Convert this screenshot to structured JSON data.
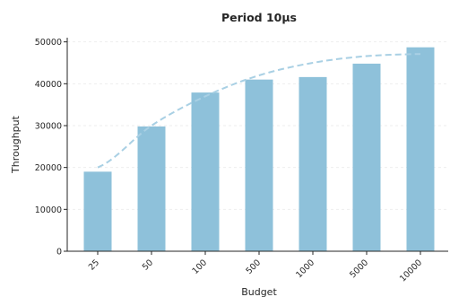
{
  "chart_data": {
    "type": "bar",
    "title": "Period 10µs",
    "xlabel": "Budget",
    "ylabel": "Throughput",
    "categories": [
      "25",
      "50",
      "100",
      "500",
      "1000",
      "5000",
      "10000"
    ],
    "values": [
      19000,
      29800,
      37900,
      41000,
      41600,
      44800,
      48700
    ],
    "ylim": [
      0,
      51000
    ],
    "yticks": [
      0,
      10000,
      20000,
      30000,
      40000,
      50000
    ],
    "grid": true,
    "trend_line": {
      "style": "dashed",
      "values": [
        20000,
        30000,
        37000,
        42000,
        45000,
        46600,
        47100
      ]
    },
    "colors": {
      "bar": "#8ec1da",
      "trend": "#a9d0e4",
      "axis": "#262626",
      "grid": "#eeeeee"
    }
  }
}
